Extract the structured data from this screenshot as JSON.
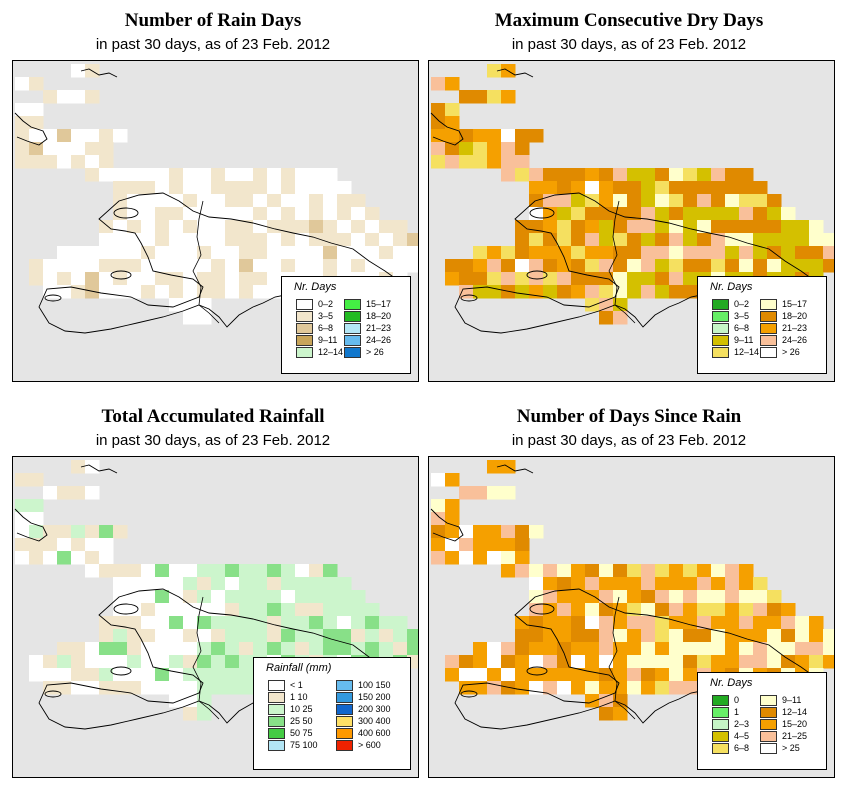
{
  "panels": [
    {
      "id": "rain-days",
      "title": "Number of Rain Days",
      "subtitle": "in past 30 days, as of  23 Feb. 2012",
      "legend": {
        "title": "Nr. Days",
        "items": [
          {
            "label": "0–2",
            "color": "#ffffff"
          },
          {
            "label": "3–5",
            "color": "#f2e6cc"
          },
          {
            "label": "6–8",
            "color": "#e0c89a"
          },
          {
            "label": "9–11",
            "color": "#c8a55a"
          },
          {
            "label": "12–14",
            "color": "#ccf5cc"
          },
          {
            "label": "15–17",
            "color": "#44ee44"
          },
          {
            "label": "18–20",
            "color": "#22bb22"
          },
          {
            "label": "21–23",
            "color": "#b3e6f5"
          },
          {
            "label": "24–26",
            "color": "#66bbee"
          },
          {
            "label": "> 26",
            "color": "#1177cc"
          }
        ]
      }
    },
    {
      "id": "dry-days",
      "title": "Maximum Consecutive Dry Days",
      "subtitle": "in past 30 days, as of  23 Feb. 2012",
      "legend": {
        "title": "Nr. Days",
        "items": [
          {
            "label": "0–2",
            "color": "#22aa22"
          },
          {
            "label": "3–5",
            "color": "#66ee66"
          },
          {
            "label": "6–8",
            "color": "#c6f5c6"
          },
          {
            "label": "9–11",
            "color": "#d4c000"
          },
          {
            "label": "12–14",
            "color": "#f5e060"
          },
          {
            "label": "15–17",
            "color": "#ffffcc"
          },
          {
            "label": "18–20",
            "color": "#e08a00"
          },
          {
            "label": "21–23",
            "color": "#f5a000"
          },
          {
            "label": "24–26",
            "color": "#f9c09a"
          },
          {
            "label": "> 26",
            "color": "#ffffff"
          }
        ]
      }
    },
    {
      "id": "rainfall",
      "title": "Total Accumulated Rainfall",
      "subtitle": "in past 30 days, as of  23 Feb. 2012",
      "legend": {
        "title": "Rainfall (mm)",
        "items": [
          {
            "label": "< 1",
            "color": "#ffffff"
          },
          {
            "label": "1    10",
            "color": "#f2e6cc"
          },
          {
            "label": "10    25",
            "color": "#ccf5cc"
          },
          {
            "label": "25    50",
            "color": "#88e088"
          },
          {
            "label": "50    75",
            "color": "#44cc44"
          },
          {
            "label": "75   100",
            "color": "#b3e6f5"
          },
          {
            "label": "100   150",
            "color": "#66bbee"
          },
          {
            "label": "150   200",
            "color": "#3399dd"
          },
          {
            "label": "200   300",
            "color": "#1166cc"
          },
          {
            "label": "300   400",
            "color": "#ffe066"
          },
          {
            "label": "400   600",
            "color": "#ff9900"
          },
          {
            "label": "> 600",
            "color": "#ee2200"
          }
        ]
      }
    },
    {
      "id": "since-rain",
      "title": "Number of Days Since Rain",
      "subtitle": "in past 30 days, as of  23 Feb. 2012",
      "legend": {
        "title": "Nr. Days",
        "items": [
          {
            "label": "0",
            "color": "#22aa22"
          },
          {
            "label": "1",
            "color": "#66ee66"
          },
          {
            "label": "2–3",
            "color": "#c6f5c6"
          },
          {
            "label": "4–5",
            "color": "#d4c000"
          },
          {
            "label": "6–8",
            "color": "#f5e060"
          },
          {
            "label": "9–11",
            "color": "#ffffcc"
          },
          {
            "label": "12–14",
            "color": "#e08a00"
          },
          {
            "label": "15–20",
            "color": "#f5a000"
          },
          {
            "label": "21–25",
            "color": "#f9c09a"
          },
          {
            "label": "> 25",
            "color": "#ffffff"
          }
        ]
      }
    }
  ]
}
